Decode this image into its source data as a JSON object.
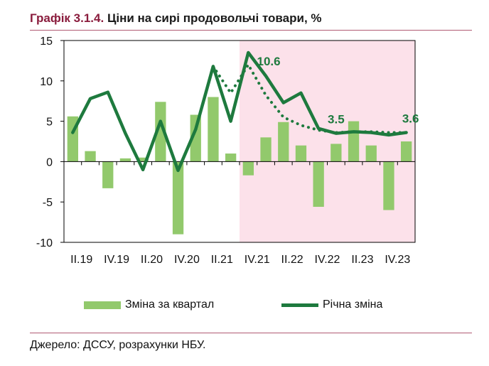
{
  "header": {
    "number": "Графік 3.1.4.",
    "text": "Ціни на сирі продовольчі товари, %"
  },
  "source": "Джерело: ДССУ, розрахунки НБУ.",
  "colors": {
    "bars": "#92c96c",
    "line": "#1e7a3e",
    "forecast": "#1e7a3e",
    "shade": "#fce1ea",
    "rule": "#b05a73",
    "title_accent": "#8a1c3d"
  },
  "chart_data": {
    "type": "bar",
    "ylim": [
      -10,
      15
    ],
    "yticks": [
      -10,
      -5,
      0,
      5,
      10,
      15
    ],
    "ytick_labels": [
      "-10",
      "-5",
      "0",
      "5",
      "10",
      "15"
    ],
    "x_tick_labels": [
      "II.19",
      "IV.19",
      "II.20",
      "IV.20",
      "II.21",
      "IV.21",
      "II.22",
      "IV.22",
      "II.23",
      "IV.23"
    ],
    "n_periods": 20,
    "shaded_from_index": 10,
    "series": [
      {
        "name": "Зміна за квартал",
        "type": "bar",
        "values": [
          5.6,
          1.3,
          -3.3,
          0.4,
          0.5,
          7.4,
          -9.0,
          5.8,
          8.0,
          1.0,
          -1.7,
          3.0,
          4.9,
          2.0,
          -5.6,
          2.2,
          5.0,
          2.0,
          -6.0,
          2.5
        ]
      },
      {
        "name": "Річна зміна",
        "type": "line",
        "values": [
          3.6,
          7.8,
          8.6,
          3.5,
          -1.0,
          5.0,
          -1.1,
          4.0,
          11.8,
          5.0,
          13.5,
          10.6,
          7.3,
          8.5,
          4.1,
          3.5,
          3.7,
          3.6,
          3.3,
          3.6
        ]
      },
      {
        "type": "line-dotted",
        "start_index": 8,
        "values": [
          11.8,
          8.5,
          12.0,
          8.2,
          5.5,
          4.5,
          3.9,
          3.6,
          3.7,
          3.7,
          3.6,
          3.6
        ]
      }
    ],
    "annotations": [
      {
        "text": "10.6",
        "index": 11,
        "value": 10.6
      },
      {
        "text": "3.5",
        "index": 15,
        "value": 3.5
      },
      {
        "text": "3.6",
        "index": 19,
        "value": 3.6
      }
    ]
  }
}
